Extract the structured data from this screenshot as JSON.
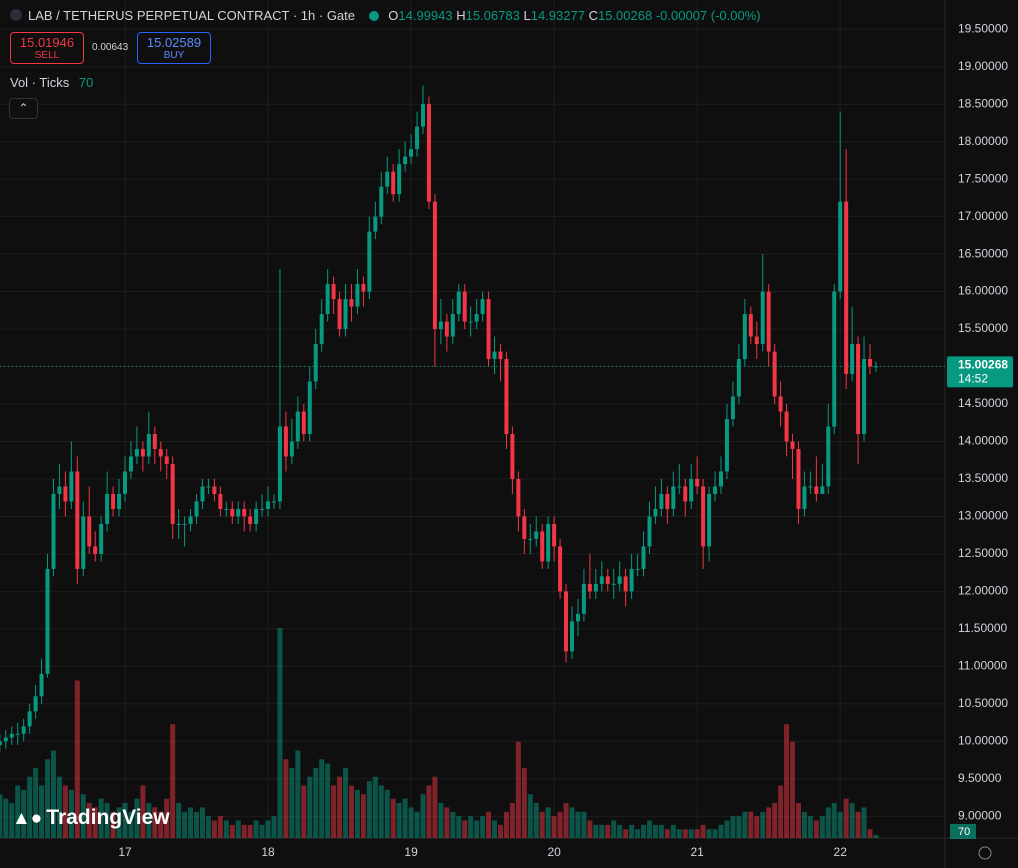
{
  "header": {
    "symbol_title": "LAB / TETHERUS PERPETUAL CONTRACT · 1h · Gate",
    "o_label": "O",
    "h_label": "H",
    "l_label": "L",
    "c_label": "C",
    "change": "-0.00007 (-0.00%)",
    "sell_price": 15.01946,
    "sell_label": "SELL",
    "spread": 0.00643,
    "buy_price": 15.02589,
    "buy_label": "BUY",
    "indicator": "Vol · Ticks",
    "logo": "TradingView"
  },
  "chart_data": {
    "type": "candlestick",
    "categories": [
      null,
      null,
      null,
      null,
      null,
      null,
      null,
      null,
      null,
      null,
      null,
      null,
      null,
      null,
      null,
      null,
      null,
      null,
      null,
      null,
      null,
      "17",
      null,
      null,
      null,
      null,
      null,
      null,
      null,
      null,
      null,
      null,
      null,
      null,
      null,
      null,
      null,
      null,
      null,
      null,
      null,
      null,
      null,
      null,
      null,
      "18",
      null,
      null,
      null,
      null,
      null,
      null,
      null,
      null,
      null,
      null,
      null,
      null,
      null,
      null,
      null,
      null,
      null,
      null,
      null,
      null,
      null,
      null,
      null,
      "19",
      null,
      null,
      null,
      null,
      null,
      null,
      null,
      null,
      null,
      null,
      null,
      null,
      null,
      null,
      null,
      null,
      null,
      null,
      null,
      null,
      null,
      null,
      null,
      "20",
      null,
      null,
      null,
      null,
      null,
      null,
      null,
      null,
      null,
      null,
      null,
      null,
      null,
      null,
      null,
      null,
      null,
      null,
      null,
      null,
      null,
      null,
      null,
      "21",
      null,
      null,
      null,
      null,
      null,
      null,
      null,
      null,
      null,
      null,
      null,
      null,
      null,
      null,
      null,
      null,
      null,
      null,
      null,
      null,
      null,
      null,
      null,
      "22",
      null,
      null,
      null,
      null,
      null,
      null
    ],
    "open": [
      9.95,
      10.0,
      10.05,
      10.1,
      10.1,
      10.2,
      10.4,
      10.6,
      10.9,
      12.3,
      13.3,
      13.4,
      13.2,
      13.6,
      12.3,
      13.0,
      12.6,
      12.5,
      12.9,
      13.3,
      13.1,
      13.3,
      13.6,
      13.8,
      13.9,
      13.8,
      14.1,
      13.9,
      13.8,
      13.7,
      12.9,
      12.9,
      12.9,
      13.0,
      13.2,
      13.4,
      13.4,
      13.3,
      13.1,
      13.1,
      13.0,
      13.1,
      13.0,
      12.9,
      13.1,
      13.1,
      13.2,
      13.2,
      14.2,
      13.8,
      14.0,
      14.4,
      14.1,
      14.8,
      15.3,
      15.7,
      16.1,
      15.9,
      15.5,
      15.9,
      15.8,
      16.1,
      16.0,
      16.8,
      17.0,
      17.4,
      17.6,
      17.3,
      17.7,
      17.8,
      17.9,
      18.2,
      18.5,
      17.2,
      15.5,
      15.6,
      15.4,
      15.7,
      16.0,
      15.6,
      15.6,
      15.7,
      15.9,
      15.1,
      15.2,
      15.1,
      14.1,
      13.5,
      13.0,
      12.7,
      12.7,
      12.8,
      12.4,
      12.9,
      12.6,
      12.0,
      11.2,
      11.6,
      11.7,
      12.1,
      12.0,
      12.1,
      12.2,
      12.1,
      12.1,
      12.2,
      12.0,
      12.3,
      12.3,
      12.6,
      13.0,
      13.1,
      13.3,
      13.1,
      13.4,
      13.4,
      13.2,
      13.5,
      13.4,
      12.6,
      13.3,
      13.4,
      13.6,
      14.3,
      14.6,
      15.1,
      15.7,
      15.4,
      15.3,
      16.0,
      15.2,
      14.6,
      14.4,
      14.0,
      13.9,
      13.1,
      13.4,
      13.4,
      13.3,
      13.4,
      14.2,
      16.0,
      17.2,
      14.9,
      15.3,
      14.1,
      15.1,
      14.99943
    ],
    "high": [
      10.1,
      10.15,
      10.2,
      10.25,
      10.3,
      10.5,
      10.75,
      11.1,
      12.5,
      13.5,
      13.7,
      13.6,
      14.0,
      13.8,
      13.2,
      13.4,
      12.8,
      13.0,
      13.6,
      13.4,
      13.5,
      13.8,
      14.0,
      14.2,
      14.0,
      14.4,
      14.2,
      14.0,
      13.9,
      13.8,
      13.1,
      13.0,
      13.1,
      13.3,
      13.5,
      13.5,
      13.5,
      13.4,
      13.2,
      13.2,
      13.2,
      13.2,
      13.1,
      13.2,
      13.3,
      13.4,
      13.3,
      16.3,
      14.4,
      14.3,
      14.6,
      14.5,
      15.0,
      15.5,
      15.9,
      16.3,
      16.2,
      16.0,
      16.1,
      16.1,
      16.3,
      16.2,
      17.0,
      17.2,
      17.6,
      17.8,
      17.7,
      17.9,
      18.0,
      18.1,
      18.4,
      18.75,
      18.6,
      17.3,
      15.9,
      15.7,
      15.9,
      16.1,
      16.1,
      15.8,
      15.9,
      16.0,
      16.0,
      15.4,
      15.3,
      15.2,
      14.2,
      13.6,
      13.1,
      12.9,
      13.0,
      12.9,
      13.0,
      13.0,
      12.7,
      12.1,
      11.8,
      11.9,
      12.3,
      12.5,
      12.3,
      12.4,
      12.3,
      12.3,
      12.4,
      12.3,
      12.5,
      12.5,
      12.8,
      13.2,
      13.4,
      13.5,
      13.4,
      13.6,
      13.7,
      13.5,
      13.7,
      13.8,
      13.5,
      13.4,
      13.6,
      13.8,
      14.5,
      14.8,
      15.3,
      15.9,
      15.8,
      15.6,
      16.5,
      16.1,
      15.3,
      14.8,
      14.5,
      14.1,
      14.0,
      13.6,
      13.6,
      13.8,
      13.7,
      14.5,
      16.1,
      18.4,
      17.9,
      15.8,
      15.4,
      15.4,
      15.3,
      15.06783
    ],
    "low": [
      9.85,
      9.9,
      9.95,
      9.95,
      10.0,
      10.1,
      10.3,
      10.5,
      10.85,
      12.2,
      13.1,
      13.0,
      13.1,
      12.1,
      12.2,
      12.5,
      12.4,
      12.4,
      12.8,
      13.0,
      13.0,
      13.2,
      13.5,
      13.7,
      13.6,
      13.7,
      13.7,
      13.6,
      13.5,
      12.7,
      12.7,
      12.6,
      12.8,
      12.9,
      13.1,
      13.3,
      13.2,
      13.0,
      13.0,
      12.9,
      12.9,
      12.8,
      12.8,
      12.8,
      13.0,
      13.0,
      13.1,
      13.1,
      13.6,
      13.7,
      13.9,
      14.0,
      14.0,
      14.7,
      15.2,
      15.6,
      15.7,
      15.4,
      15.4,
      15.6,
      15.7,
      15.8,
      15.9,
      16.7,
      16.9,
      17.3,
      17.2,
      17.2,
      17.6,
      17.7,
      17.8,
      18.1,
      17.1,
      15.0,
      15.3,
      15.2,
      15.3,
      15.6,
      15.5,
      15.4,
      15.5,
      15.6,
      15.0,
      14.9,
      14.8,
      13.9,
      13.3,
      12.8,
      12.5,
      12.5,
      12.6,
      12.3,
      12.3,
      12.4,
      11.9,
      11.05,
      11.1,
      11.4,
      11.6,
      11.9,
      11.9,
      12.0,
      12.0,
      11.9,
      12.0,
      11.8,
      11.9,
      12.2,
      12.2,
      12.5,
      12.9,
      13.0,
      12.9,
      13.0,
      13.3,
      13.0,
      13.1,
      13.3,
      12.3,
      12.4,
      13.2,
      13.3,
      13.5,
      14.2,
      14.5,
      15.0,
      15.3,
      15.1,
      15.2,
      15.0,
      14.5,
      14.2,
      13.8,
      13.5,
      12.9,
      13.0,
      13.3,
      13.2,
      13.3,
      13.3,
      14.1,
      15.9,
      14.7,
      14.8,
      13.7,
      14.0,
      14.9,
      14.93277
    ],
    "close": [
      10.0,
      10.05,
      10.1,
      10.1,
      10.2,
      10.4,
      10.6,
      10.9,
      12.3,
      13.3,
      13.4,
      13.2,
      13.6,
      12.3,
      13.0,
      12.6,
      12.5,
      12.9,
      13.3,
      13.1,
      13.3,
      13.6,
      13.8,
      13.9,
      13.8,
      14.1,
      13.9,
      13.8,
      13.7,
      12.9,
      12.9,
      12.9,
      13.0,
      13.2,
      13.4,
      13.4,
      13.3,
      13.1,
      13.1,
      13.0,
      13.1,
      13.0,
      12.9,
      13.1,
      13.1,
      13.2,
      13.2,
      14.2,
      13.8,
      14.0,
      14.4,
      14.1,
      14.8,
      15.3,
      15.7,
      16.1,
      15.9,
      15.5,
      15.9,
      15.8,
      16.1,
      16.0,
      16.8,
      17.0,
      17.4,
      17.6,
      17.3,
      17.7,
      17.8,
      17.9,
      18.2,
      18.5,
      17.2,
      15.5,
      15.6,
      15.4,
      15.7,
      16.0,
      15.6,
      15.6,
      15.7,
      15.9,
      15.1,
      15.2,
      15.1,
      14.1,
      13.5,
      13.0,
      12.7,
      12.7,
      12.8,
      12.4,
      12.9,
      12.6,
      12.0,
      11.2,
      11.6,
      11.7,
      12.1,
      12.0,
      12.1,
      12.2,
      12.1,
      12.1,
      12.2,
      12.0,
      12.3,
      12.3,
      12.6,
      13.0,
      13.1,
      13.3,
      13.1,
      13.4,
      13.4,
      13.2,
      13.5,
      13.4,
      12.6,
      13.3,
      13.4,
      13.6,
      14.3,
      14.6,
      15.1,
      15.7,
      15.4,
      15.3,
      16.0,
      15.2,
      14.6,
      14.4,
      14.0,
      13.9,
      13.1,
      13.4,
      13.4,
      13.3,
      13.4,
      14.2,
      16.0,
      17.2,
      14.9,
      15.3,
      14.1,
      15.1,
      15.0,
      15.00268
    ],
    "volume": [
      1000,
      900,
      800,
      1200,
      1100,
      1400,
      1600,
      1200,
      1800,
      2000,
      1400,
      1200,
      1100,
      3600,
      1000,
      800,
      700,
      900,
      800,
      600,
      700,
      800,
      600,
      900,
      1200,
      800,
      700,
      600,
      900,
      2600,
      800,
      600,
      700,
      600,
      700,
      500,
      400,
      500,
      400,
      300,
      400,
      300,
      300,
      400,
      300,
      400,
      500,
      4800,
      1800,
      1600,
      2000,
      1200,
      1400,
      1600,
      1800,
      1700,
      1200,
      1400,
      1600,
      1200,
      1100,
      1000,
      1300,
      1400,
      1200,
      1100,
      900,
      800,
      900,
      700,
      600,
      1000,
      1200,
      1400,
      800,
      700,
      600,
      500,
      400,
      500,
      400,
      500,
      600,
      400,
      300,
      600,
      800,
      2200,
      1600,
      1000,
      800,
      600,
      700,
      500,
      600,
      800,
      700,
      600,
      600,
      400,
      300,
      300,
      300,
      400,
      300,
      200,
      300,
      200,
      300,
      400,
      300,
      300,
      200,
      300,
      200,
      200,
      200,
      200,
      300,
      200,
      200,
      300,
      400,
      500,
      500,
      600,
      600,
      500,
      600,
      700,
      800,
      1200,
      2600,
      2200,
      800,
      600,
      500,
      400,
      500,
      700,
      800,
      600,
      900,
      800,
      600,
      700,
      200,
      70
    ],
    "up_color": "#089981",
    "down_color": "#f23645",
    "ylim": [
      8.71,
      19.89
    ],
    "yticks": [
      {
        "value": 9.0,
        "label": "9.00000"
      },
      {
        "value": 9.5,
        "label": "9.50000"
      },
      {
        "value": 10.0,
        "label": "10.00000"
      },
      {
        "value": 10.5,
        "label": "10.50000"
      },
      {
        "value": 11.0,
        "label": "11.00000"
      },
      {
        "value": 11.5,
        "label": "11.50000"
      },
      {
        "value": 12.0,
        "label": "12.00000"
      },
      {
        "value": 12.5,
        "label": "12.50000"
      },
      {
        "value": 13.0,
        "label": "13.00000"
      },
      {
        "value": 13.5,
        "label": "13.50000"
      },
      {
        "value": 14.0,
        "label": "14.00000"
      },
      {
        "value": 14.5,
        "label": "14.50000"
      },
      {
        "value": 15.0,
        "label": "15.00000"
      },
      {
        "value": 15.5,
        "label": "15.50000"
      },
      {
        "value": 16.0,
        "label": "16.00000"
      },
      {
        "value": 16.5,
        "label": "16.50000"
      },
      {
        "value": 17.0,
        "label": "17.00000"
      },
      {
        "value": 17.5,
        "label": "17.50000"
      },
      {
        "value": 18.0,
        "label": "18.00000"
      },
      {
        "value": 18.5,
        "label": "18.50000"
      },
      {
        "value": 19.0,
        "label": "19.00000"
      },
      {
        "value": 19.5,
        "label": "19.50000"
      }
    ],
    "countdown": "14:52",
    "grid": true
  }
}
